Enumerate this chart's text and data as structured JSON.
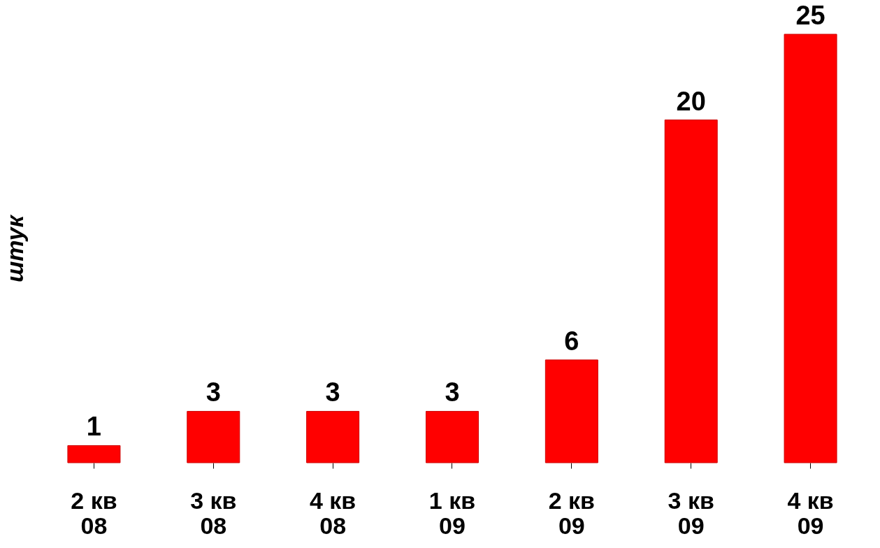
{
  "chart_data": {
    "type": "bar",
    "ylabel": "штук",
    "categories": [
      "2 кв\n08",
      "3 кв\n08",
      "4 кв\n08",
      "1 кв\n09",
      "2 кв\n09",
      "3 кв\n09",
      "4 кв\n09"
    ],
    "values": [
      1,
      3,
      3,
      3,
      6,
      20,
      25
    ],
    "color": "#ff0000",
    "data_labels": true,
    "grid": false
  }
}
